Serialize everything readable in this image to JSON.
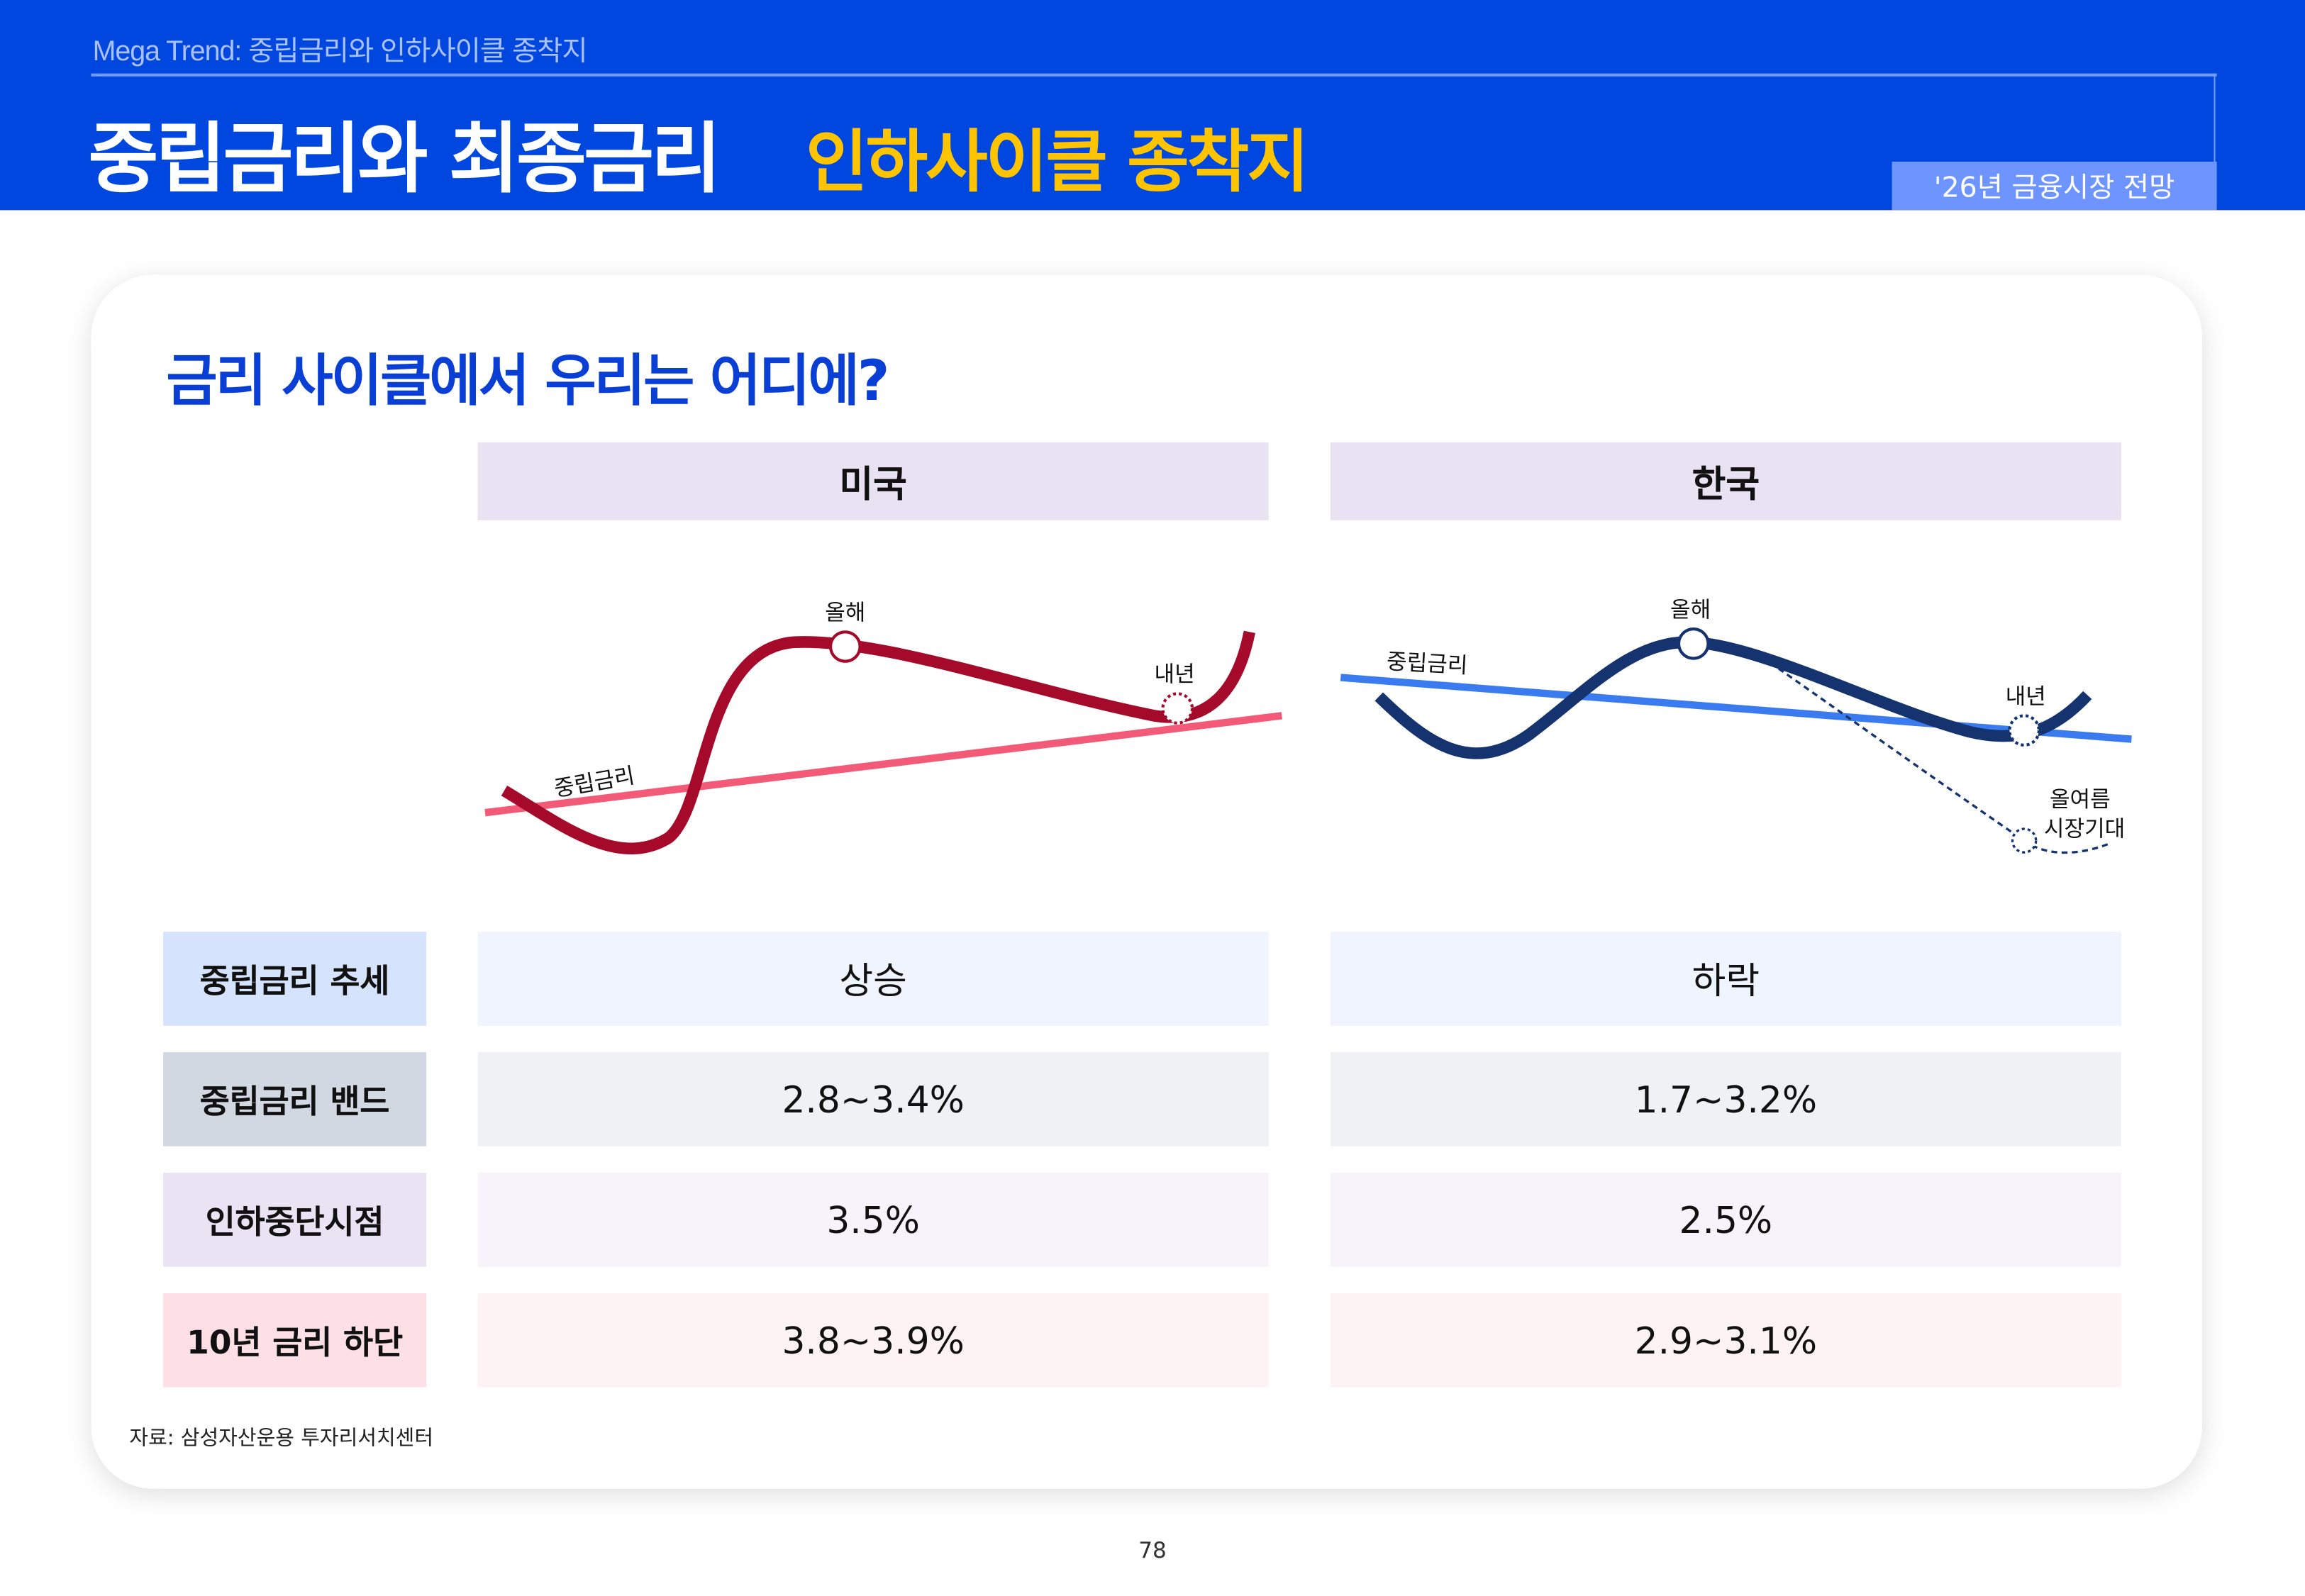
{
  "header": {
    "kicker": "Mega Trend: 중립금리와 인하사이클 종착지",
    "title": "중립금리와 최종금리",
    "title_highlight": "인하사이클 종착지",
    "tag": "'26년 금융시장 전망"
  },
  "card": {
    "question": "금리 사이클에서 우리는 어디에?",
    "columns": [
      "미국",
      "한국"
    ],
    "diagram": {
      "us": {
        "neutral_label": "중립금리",
        "this_year": "올해",
        "next_year": "내년",
        "neutral_trend": "rising"
      },
      "kr": {
        "neutral_label": "중립금리",
        "this_year": "올해",
        "next_year": "내년",
        "market_expectation": [
          "올여름",
          "시장기대"
        ],
        "neutral_trend": "falling"
      },
      "colors": {
        "us_curve": "#a50a2a",
        "us_neutral": "#f25a78",
        "kr_curve": "#15336e",
        "kr_neutral": "#3b7bf0"
      }
    },
    "rows": [
      {
        "label": "중립금리 추세",
        "us": "상승",
        "kr": "하락"
      },
      {
        "label": "중립금리 밴드",
        "us": "2.8~3.4%",
        "kr": "1.7~3.2%"
      },
      {
        "label": "인하중단시점",
        "us": "3.5%",
        "kr": "2.5%"
      },
      {
        "label": "10년 금리 하단",
        "us": "3.8~3.9%",
        "kr": "2.9~3.1%"
      }
    ],
    "source": "자료: 삼성자산운용 투자리서치센터"
  },
  "page_number": "78",
  "colors": {
    "header_bg": "#0047e0",
    "highlight": "#ffc400",
    "accent": "#0a3fd6"
  }
}
